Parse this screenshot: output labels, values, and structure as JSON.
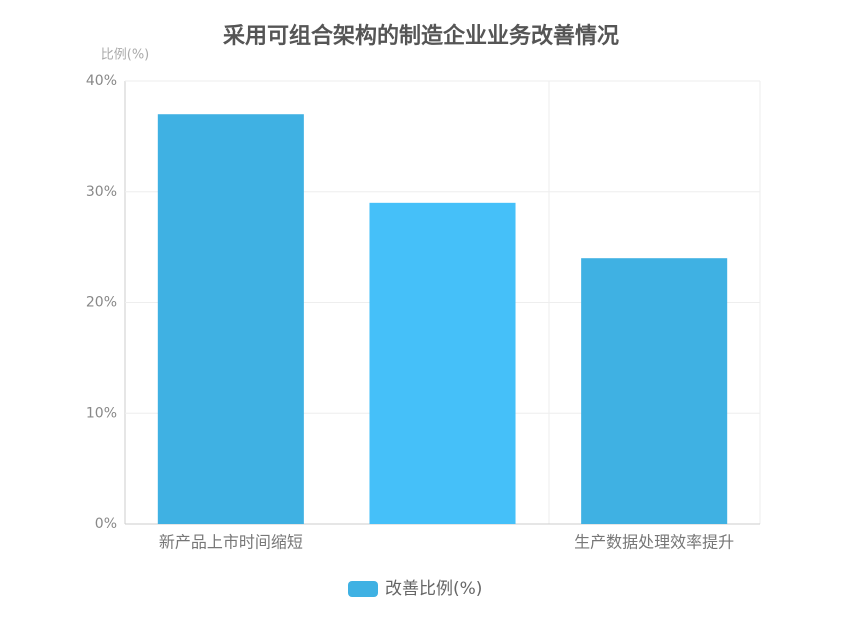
{
  "chart_data": {
    "type": "bar",
    "title": "采用可组合架构的制造企业业务改善情况",
    "y_axis_label": "比例(%)",
    "categories": [
      "新产品上市时间缩短",
      null,
      "生产数据处理效率提升"
    ],
    "series": [
      {
        "name": "改善比例(%)",
        "color": "#3fb1e3",
        "colors": [
          "#3fb1e3",
          "#45c0f9",
          "#3fb1e3"
        ],
        "values": [
          37,
          29,
          24
        ]
      }
    ],
    "ylim": [
      0,
      40
    ],
    "yticks": [
      {
        "value": 0,
        "label": "0%"
      },
      {
        "value": 10,
        "label": "10%"
      },
      {
        "value": 20,
        "label": "20%"
      },
      {
        "value": 30,
        "label": "30%"
      },
      {
        "value": 40,
        "label": "40%"
      }
    ],
    "grid": true,
    "legend": "bottom"
  }
}
